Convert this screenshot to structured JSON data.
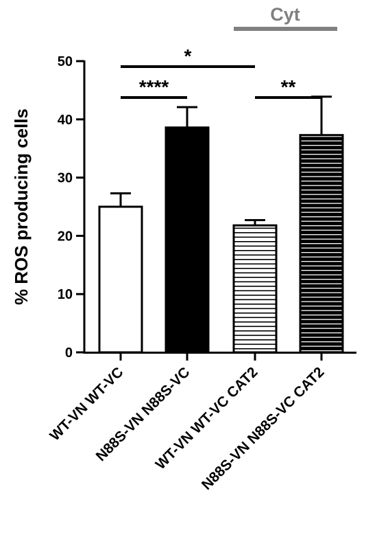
{
  "chart_data": {
    "type": "bar",
    "title": "",
    "xlabel": "",
    "ylabel": "% ROS producing cells",
    "ylim": [
      0,
      50
    ],
    "yticks": [
      0,
      10,
      20,
      30,
      40,
      50
    ],
    "grid": false,
    "categories": [
      "WT-VN WT-VC",
      "N88S-VN N88S-VC",
      "WT-VN WT-VC CAT2",
      "N88S-VN N88S-VC CAT2"
    ],
    "values": [
      25.0,
      38.6,
      21.8,
      37.3
    ],
    "errors": [
      2.3,
      3.5,
      0.9,
      6.6
    ],
    "fills": [
      "white",
      "solid",
      "stripes-white",
      "stripes-black"
    ],
    "group_label": {
      "text": "Cyt",
      "categories": [
        2,
        3
      ],
      "color": "#808080"
    },
    "significance": [
      {
        "label": "*",
        "from": 0,
        "to": 2,
        "level": 1
      },
      {
        "label": "****",
        "from": 0,
        "to": 1,
        "level": 0
      },
      {
        "label": "**",
        "from": 2,
        "to": 3,
        "level": 0
      }
    ]
  }
}
